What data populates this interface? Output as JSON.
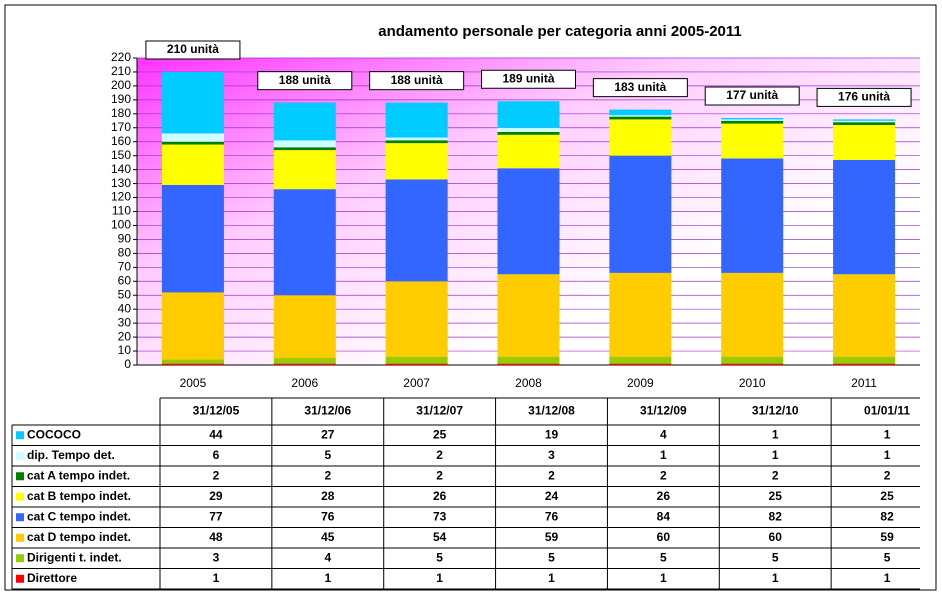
{
  "chart_data": {
    "type": "stacked_bar",
    "title": "andamento personale per categoria anni 2005-2011",
    "categories": [
      "2005",
      "2006",
      "2007",
      "2008",
      "2009",
      "2010",
      "2011"
    ],
    "table_headers": [
      "31/12/05",
      "31/12/06",
      "31/12/07",
      "31/12/08",
      "31/12/09",
      "31/12/10",
      "01/01/11"
    ],
    "total_labels": [
      "210 unità",
      "188 unità",
      "188 unità",
      "189 unità",
      "183 unità",
      "177 unità",
      "176 unità"
    ],
    "series": [
      {
        "name": "COCOCO",
        "color": "#00ccff",
        "values": [
          44,
          27,
          25,
          19,
          4,
          1,
          1
        ]
      },
      {
        "name": "dip. Tempo det.",
        "color": "#ccffff",
        "values": [
          6,
          5,
          2,
          3,
          1,
          1,
          1
        ]
      },
      {
        "name": "cat A tempo indet.",
        "color": "#008000",
        "values": [
          2,
          2,
          2,
          2,
          2,
          2,
          2
        ]
      },
      {
        "name": "cat B tempo indet.",
        "color": "#ffff00",
        "values": [
          29,
          28,
          26,
          24,
          26,
          25,
          25
        ]
      },
      {
        "name": "cat C tempo indet.",
        "color": "#3366ff",
        "values": [
          77,
          76,
          73,
          76,
          84,
          82,
          82
        ]
      },
      {
        "name": "cat D tempo indet.",
        "color": "#ffcc00",
        "values": [
          48,
          45,
          54,
          59,
          60,
          60,
          59
        ]
      },
      {
        "name": "Dirigenti t. indet.",
        "color": "#99cc00",
        "values": [
          3,
          4,
          5,
          5,
          5,
          5,
          5
        ]
      },
      {
        "name": "Direttore",
        "color": "#ff0000",
        "values": [
          1,
          1,
          1,
          1,
          1,
          1,
          1
        ]
      }
    ],
    "ylim": [
      0,
      220
    ],
    "yticks": [
      0,
      10,
      20,
      30,
      40,
      50,
      60,
      70,
      80,
      90,
      100,
      110,
      120,
      130,
      140,
      150,
      160,
      170,
      180,
      190,
      200,
      210,
      220
    ],
    "grid": true
  }
}
